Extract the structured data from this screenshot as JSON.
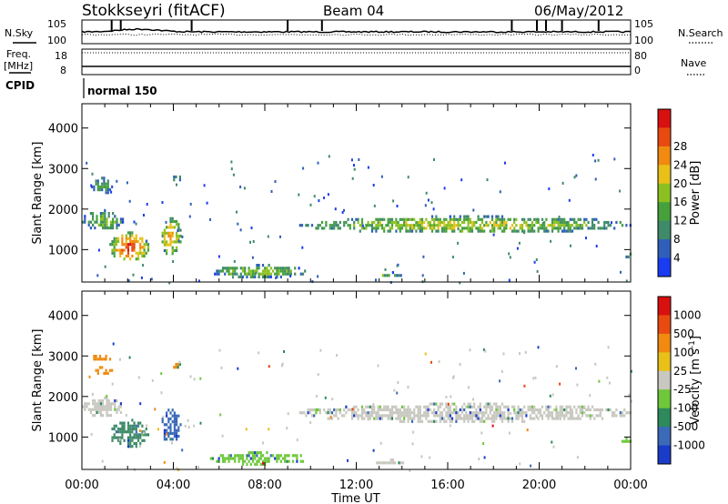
{
  "header": {
    "title": "Stokkseyri (fitACF)",
    "beam": "Beam 04",
    "date": "06/May/2012"
  },
  "top_panels": {
    "nsky_label": "N.Sky",
    "nsky_ticks": [
      "10^5",
      "10^0"
    ],
    "nsearch_label": "N.Search",
    "nsearch_ticks": [
      "10^5",
      "10^0"
    ],
    "freq_label": "Freq.",
    "freq_unit": "[MHz]",
    "freq_ticks": [
      "18",
      "8"
    ],
    "nave_label": "Nave",
    "nave_ticks": [
      "80",
      "0"
    ],
    "cpid_label": "CPID",
    "cpid_value": "normal 150"
  },
  "chart_data": [
    {
      "type": "heatmap",
      "name": "power",
      "ylabel": "Slant Range [km]",
      "yticks": [
        1000,
        2000,
        3000,
        4000
      ],
      "ylim": [
        200,
        4600
      ],
      "xlim": [
        0,
        24
      ],
      "colorbar": {
        "label": "Power [dB]",
        "ticks": [
          "4",
          "8",
          "12",
          "16",
          "20",
          "24",
          "28"
        ],
        "colors": [
          "#1a3cf0",
          "#2f5fb8",
          "#3f8a6a",
          "#46a03c",
          "#8cc020",
          "#e8c018",
          "#f08a10",
          "#e84a10",
          "#d81010"
        ]
      },
      "regions": [
        {
          "t0": 1.2,
          "t1": 2.9,
          "r0": 750,
          "r1": 1450,
          "level": 0.85
        },
        {
          "t0": 3.4,
          "t1": 4.3,
          "r0": 900,
          "r1": 1800,
          "level": 0.7
        },
        {
          "t0": 0.0,
          "t1": 1.8,
          "r0": 1500,
          "r1": 2000,
          "level": 0.45
        },
        {
          "t0": 0.4,
          "t1": 1.3,
          "r0": 2400,
          "r1": 2800,
          "level": 0.35
        },
        {
          "t0": 3.9,
          "t1": 4.3,
          "r0": 2700,
          "r1": 2900,
          "level": 0.3
        },
        {
          "t0": 5.6,
          "t1": 9.8,
          "r0": 350,
          "r1": 650,
          "level": 0.5
        },
        {
          "t0": 12.6,
          "t1": 14.2,
          "r0": 380,
          "r1": 470,
          "level": 0.45
        },
        {
          "t0": 9.5,
          "t1": 24.0,
          "r0": 1450,
          "r1": 1850,
          "level": 0.55
        },
        {
          "t0": 23.6,
          "t1": 24.0,
          "r0": 850,
          "r1": 1000,
          "level": 0.5
        }
      ]
    },
    {
      "type": "heatmap",
      "name": "velocity",
      "ylabel": "Slant Range [km]",
      "yticks": [
        1000,
        2000,
        3000,
        4000
      ],
      "ylim": [
        200,
        4600
      ],
      "xlim": [
        0,
        24
      ],
      "xlabel": "Time UT",
      "xticks": [
        "00:00",
        "04:00",
        "08:00",
        "12:00",
        "16:00",
        "20:00",
        "00:00"
      ],
      "colorbar": {
        "label": "Velocity [m s^-1]",
        "ticks": [
          "1000",
          "500",
          "100",
          "25",
          "-25",
          "-100",
          "-500",
          "-1000"
        ],
        "colors": [
          "#1a3cc8",
          "#3a6ab8",
          "#2e8a5a",
          "#6ec83a",
          "#c8c8c0",
          "#e8c018",
          "#f08a10",
          "#e84a10",
          "#d81010"
        ]
      },
      "regions": [
        {
          "t0": 1.2,
          "t1": 2.9,
          "r0": 750,
          "r1": 1450,
          "color": "#3f8a6a"
        },
        {
          "t0": 3.4,
          "t1": 4.3,
          "r0": 900,
          "r1": 1700,
          "color": "#3a6ab8"
        },
        {
          "t0": 0.0,
          "t1": 1.8,
          "r0": 1500,
          "r1": 2000,
          "color": "#c8c8c0"
        },
        {
          "t0": 0.4,
          "t1": 1.3,
          "r0": 2900,
          "r1": 3100,
          "color": "#f08a10"
        },
        {
          "t0": 0.4,
          "t1": 1.3,
          "r0": 2550,
          "r1": 2750,
          "color": "#f08a10"
        },
        {
          "t0": 3.9,
          "t1": 4.3,
          "r0": 2700,
          "r1": 2900,
          "color": "#f08a10"
        },
        {
          "t0": 5.6,
          "t1": 9.8,
          "r0": 350,
          "r1": 650,
          "color": "#6ec83a"
        },
        {
          "t0": 12.6,
          "t1": 14.2,
          "r0": 380,
          "r1": 470,
          "color": "#c8c8c0"
        },
        {
          "t0": 9.5,
          "t1": 24.0,
          "r0": 1400,
          "r1": 1850,
          "color": "#c8c8c0"
        },
        {
          "t0": 23.6,
          "t1": 24.0,
          "r0": 850,
          "r1": 1000,
          "color": "#6ec83a"
        }
      ]
    }
  ]
}
